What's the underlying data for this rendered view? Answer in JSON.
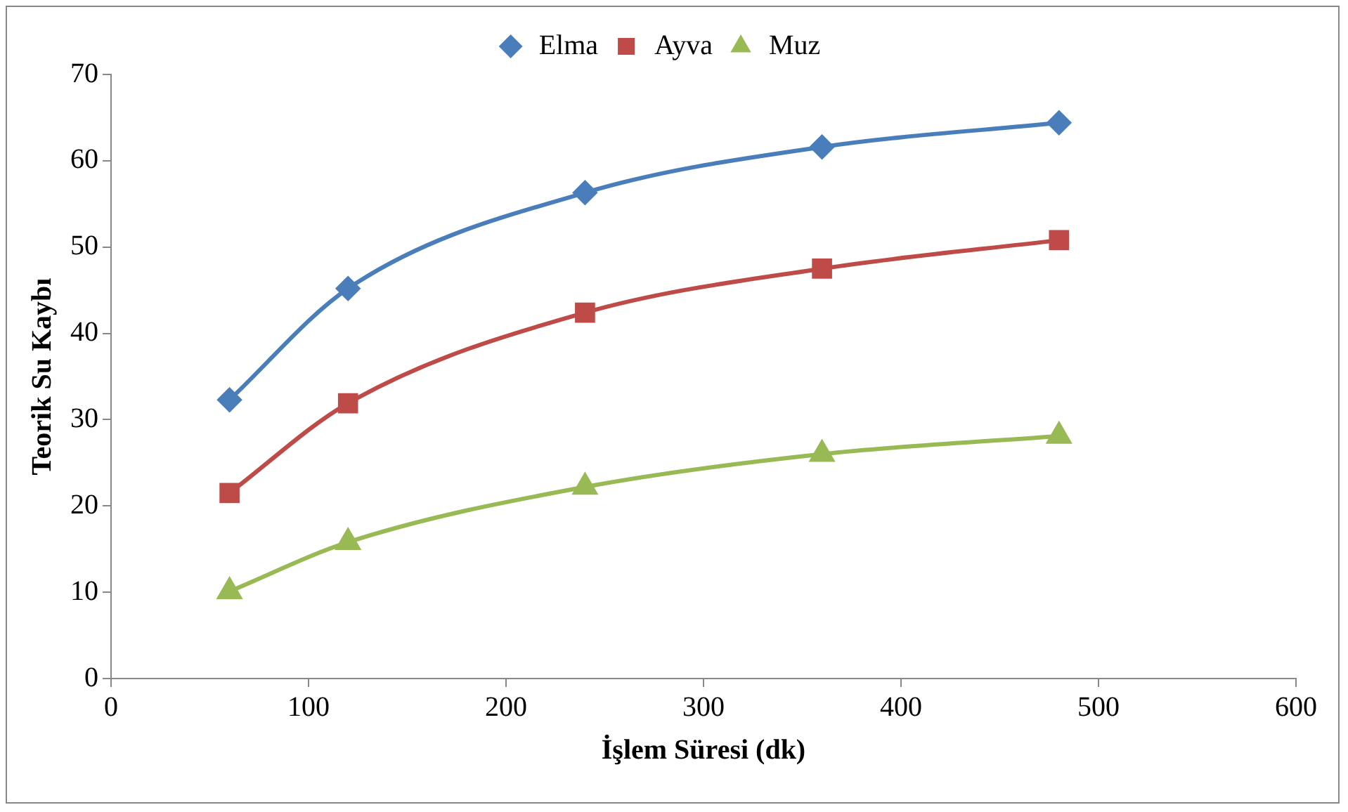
{
  "chart_data": {
    "type": "line",
    "xlabel": "İşlem Süresi (dk)",
    "ylabel": "Teorik Su Kaybı",
    "x": [
      60,
      120,
      240,
      360,
      480
    ],
    "series": [
      {
        "name": "Elma",
        "color": "#4a7ebb",
        "marker": "diamond",
        "values": [
          32.3,
          45.2,
          56.3,
          61.6,
          64.4
        ]
      },
      {
        "name": "Ayva",
        "color": "#be4b48",
        "marker": "square",
        "values": [
          21.5,
          31.9,
          42.4,
          47.5,
          50.8
        ]
      },
      {
        "name": "Muz",
        "color": "#98b954",
        "marker": "triangle",
        "values": [
          10.1,
          15.8,
          22.2,
          26.0,
          28.1
        ]
      }
    ],
    "xlim": [
      0,
      600
    ],
    "xticks": [
      0,
      100,
      200,
      300,
      400,
      500,
      600
    ],
    "ylim": [
      0,
      70
    ],
    "yticks": [
      0,
      10,
      20,
      30,
      40,
      50,
      60,
      70
    ],
    "grid": false,
    "legend": "top"
  }
}
